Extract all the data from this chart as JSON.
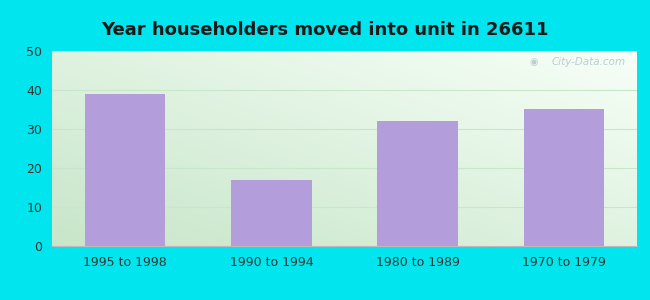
{
  "title": "Year householders moved into unit in 26611",
  "categories": [
    "1995 to 1998",
    "1990 to 1994",
    "1980 to 1989",
    "1970 to 1979"
  ],
  "values": [
    39,
    17,
    32,
    35
  ],
  "bar_color": "#b39ddb",
  "ylim": [
    0,
    50
  ],
  "yticks": [
    0,
    10,
    20,
    30,
    40,
    50
  ],
  "background_outer": "#00e5ee",
  "grid_color": "#c8e6c9",
  "title_fontsize": 13,
  "tick_fontsize": 9,
  "watermark": "City-Data.com"
}
